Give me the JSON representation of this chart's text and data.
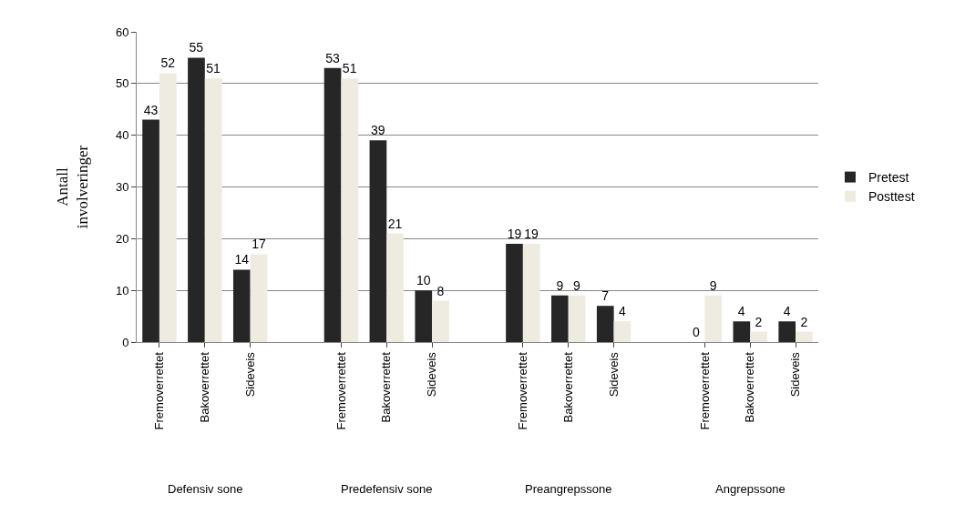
{
  "chart_data": {
    "type": "bar",
    "categories": [
      "Fremoverrettet",
      "Bakoverrettet",
      "Sideveis",
      null,
      "Fremoverrettet",
      "Bakoverrettet",
      "Sideveis",
      null,
      "Fremoverrettet",
      "Bakoverrettet",
      "Sideveis",
      null,
      "Fremoverrettet",
      "Bakoverrettet",
      "Sideveis"
    ],
    "series": [
      {
        "name": "Pretest",
        "color": "#262626",
        "values": [
          43,
          55,
          14,
          null,
          53,
          39,
          10,
          null,
          19,
          9,
          7,
          null,
          0,
          4,
          4
        ]
      },
      {
        "name": "Posttest",
        "color": "#eeebe0",
        "values": [
          52,
          51,
          17,
          null,
          51,
          21,
          8,
          null,
          19,
          9,
          4,
          null,
          9,
          2,
          2
        ]
      }
    ],
    "ylabel": "Antall involveringer",
    "annotations": [
      "Defensiv sone",
      "Predefensiv sone",
      "Preangrepssone",
      "Angrepssone"
    ],
    "ylim": [
      0,
      60
    ],
    "yticks": [
      0,
      10,
      20,
      30,
      40,
      50,
      60
    ],
    "grid": "y",
    "legend": "right",
    "data_labels": true
  }
}
